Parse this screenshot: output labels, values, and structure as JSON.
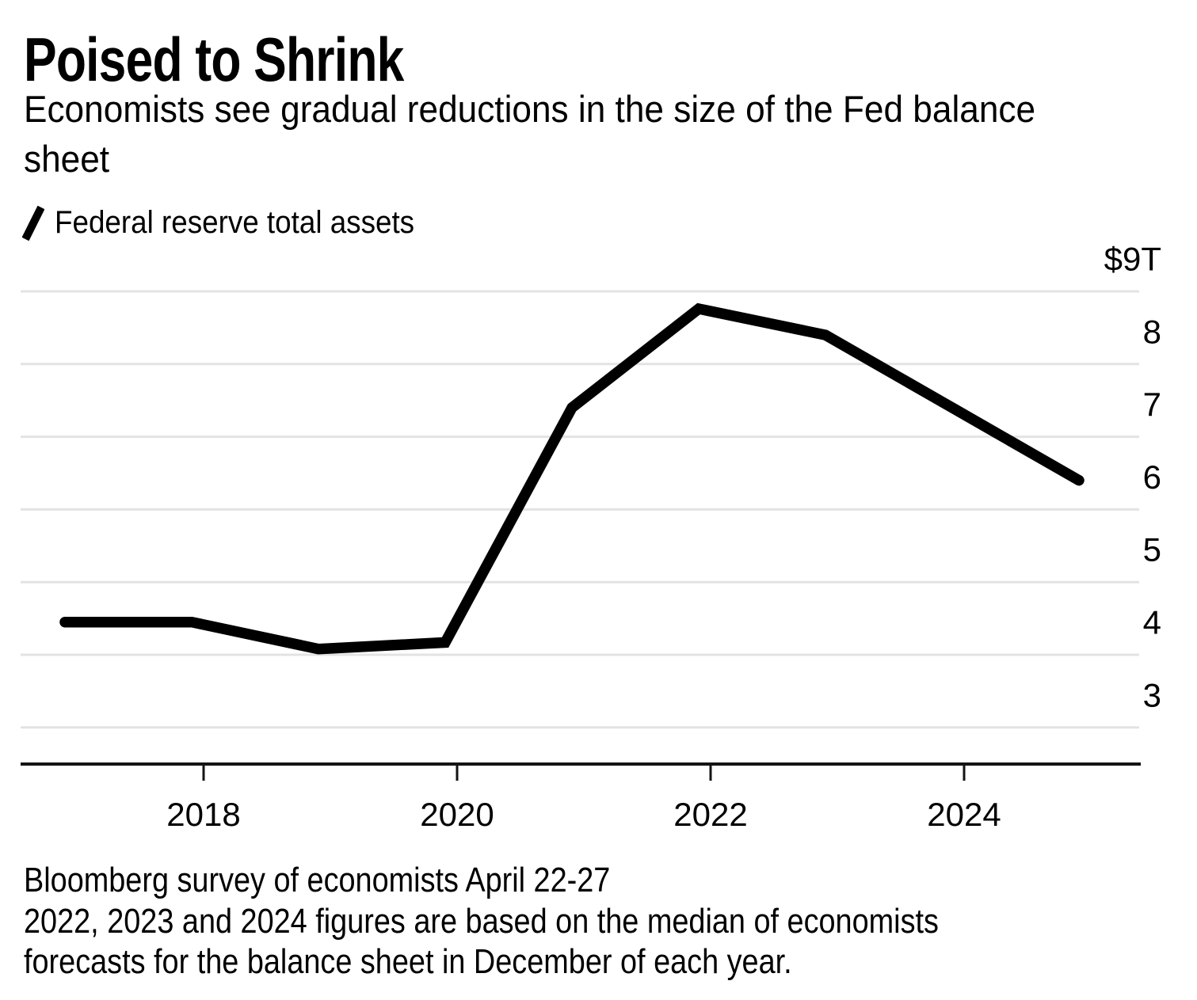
{
  "header": {
    "title": "Poised to Shrink",
    "subtitle_lines": [
      "Economists see gradual reductions in the size of the Fed balance",
      "sheet"
    ]
  },
  "legend": {
    "series_label": "Federal reserve total assets"
  },
  "source_note_lines": [
    "Bloomberg survey of economists April 22-27",
    "2022, 2023 and 2024 figures are based on the median of economists",
    "forecasts for the balance sheet in December of each year."
  ],
  "colors": {
    "line": "#000000",
    "axis": "#141414",
    "gridline": "#e3e3e3",
    "text": "#000000"
  },
  "chart_data": {
    "type": "line",
    "title": "Poised to Shrink",
    "subtitle": "Economists see gradual reductions in the size of the Fed balance sheet",
    "legend_position": "top-left",
    "grid": true,
    "series": [
      {
        "name": "Federal reserve total assets",
        "x": [
          "Dec 2016",
          "Dec 2017",
          "Dec 2018",
          "Dec 2019",
          "Dec 2020",
          "Dec 2021",
          "Dec 2022",
          "Dec 2023",
          "Dec 2024"
        ],
        "values": [
          4.45,
          4.45,
          4.08,
          4.17,
          7.4,
          8.76,
          8.4,
          7.4,
          6.4
        ]
      }
    ],
    "y_axis": {
      "unit": "trillions of US dollars",
      "tick_labels": [
        "$9T",
        "8",
        "7",
        "6",
        "5",
        "4",
        "3"
      ],
      "tick_values": [
        9,
        8,
        7,
        6,
        5,
        4,
        3
      ],
      "range": [
        2.5,
        9.5
      ],
      "side": "right"
    },
    "x_axis": {
      "tick_labels": [
        "2018",
        "2020",
        "2022",
        "2024"
      ],
      "tick_years": [
        2018,
        2020,
        2022,
        2024
      ]
    }
  }
}
